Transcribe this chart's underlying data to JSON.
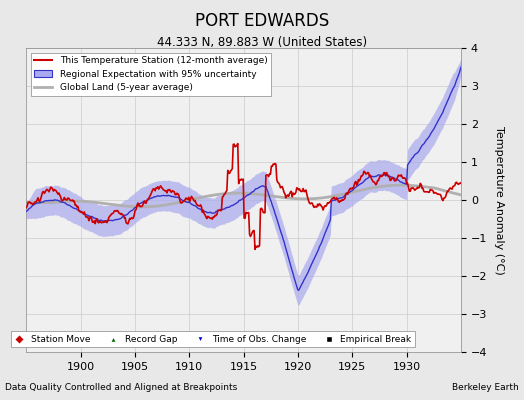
{
  "title": "PORT EDWARDS",
  "subtitle": "44.333 N, 89.883 W (United States)",
  "xlabel_left": "Data Quality Controlled and Aligned at Breakpoints",
  "xlabel_right": "Berkeley Earth",
  "ylabel": "Temperature Anomaly (°C)",
  "xlim": [
    1895,
    1935
  ],
  "ylim": [
    -4,
    4
  ],
  "yticks": [
    -4,
    -3,
    -2,
    -1,
    0,
    1,
    2,
    3,
    4
  ],
  "xticks": [
    1900,
    1905,
    1910,
    1915,
    1920,
    1925,
    1930
  ],
  "bg_color": "#e8e8e8",
  "plot_bg_color": "#f0f0f0",
  "legend1": [
    {
      "label": "This Temperature Station (12-month average)",
      "color": "#cc0000",
      "lw": 1.5
    },
    {
      "label": "Regional Expectation with 95% uncertainty",
      "color": "#3333cc",
      "fill": "#aaaaee",
      "lw": 1.2
    },
    {
      "label": "Global Land (5-year average)",
      "color": "#b0b0b0",
      "lw": 2.0
    }
  ],
  "legend2": [
    {
      "label": "Station Move",
      "marker": "D",
      "color": "#cc0000"
    },
    {
      "label": "Record Gap",
      "marker": "^",
      "color": "#006600"
    },
    {
      "label": "Time of Obs. Change",
      "marker": "v",
      "color": "#0000cc"
    },
    {
      "label": "Empirical Break",
      "marker": "s",
      "color": "#000000"
    }
  ],
  "seed": 42,
  "n_points": 480
}
